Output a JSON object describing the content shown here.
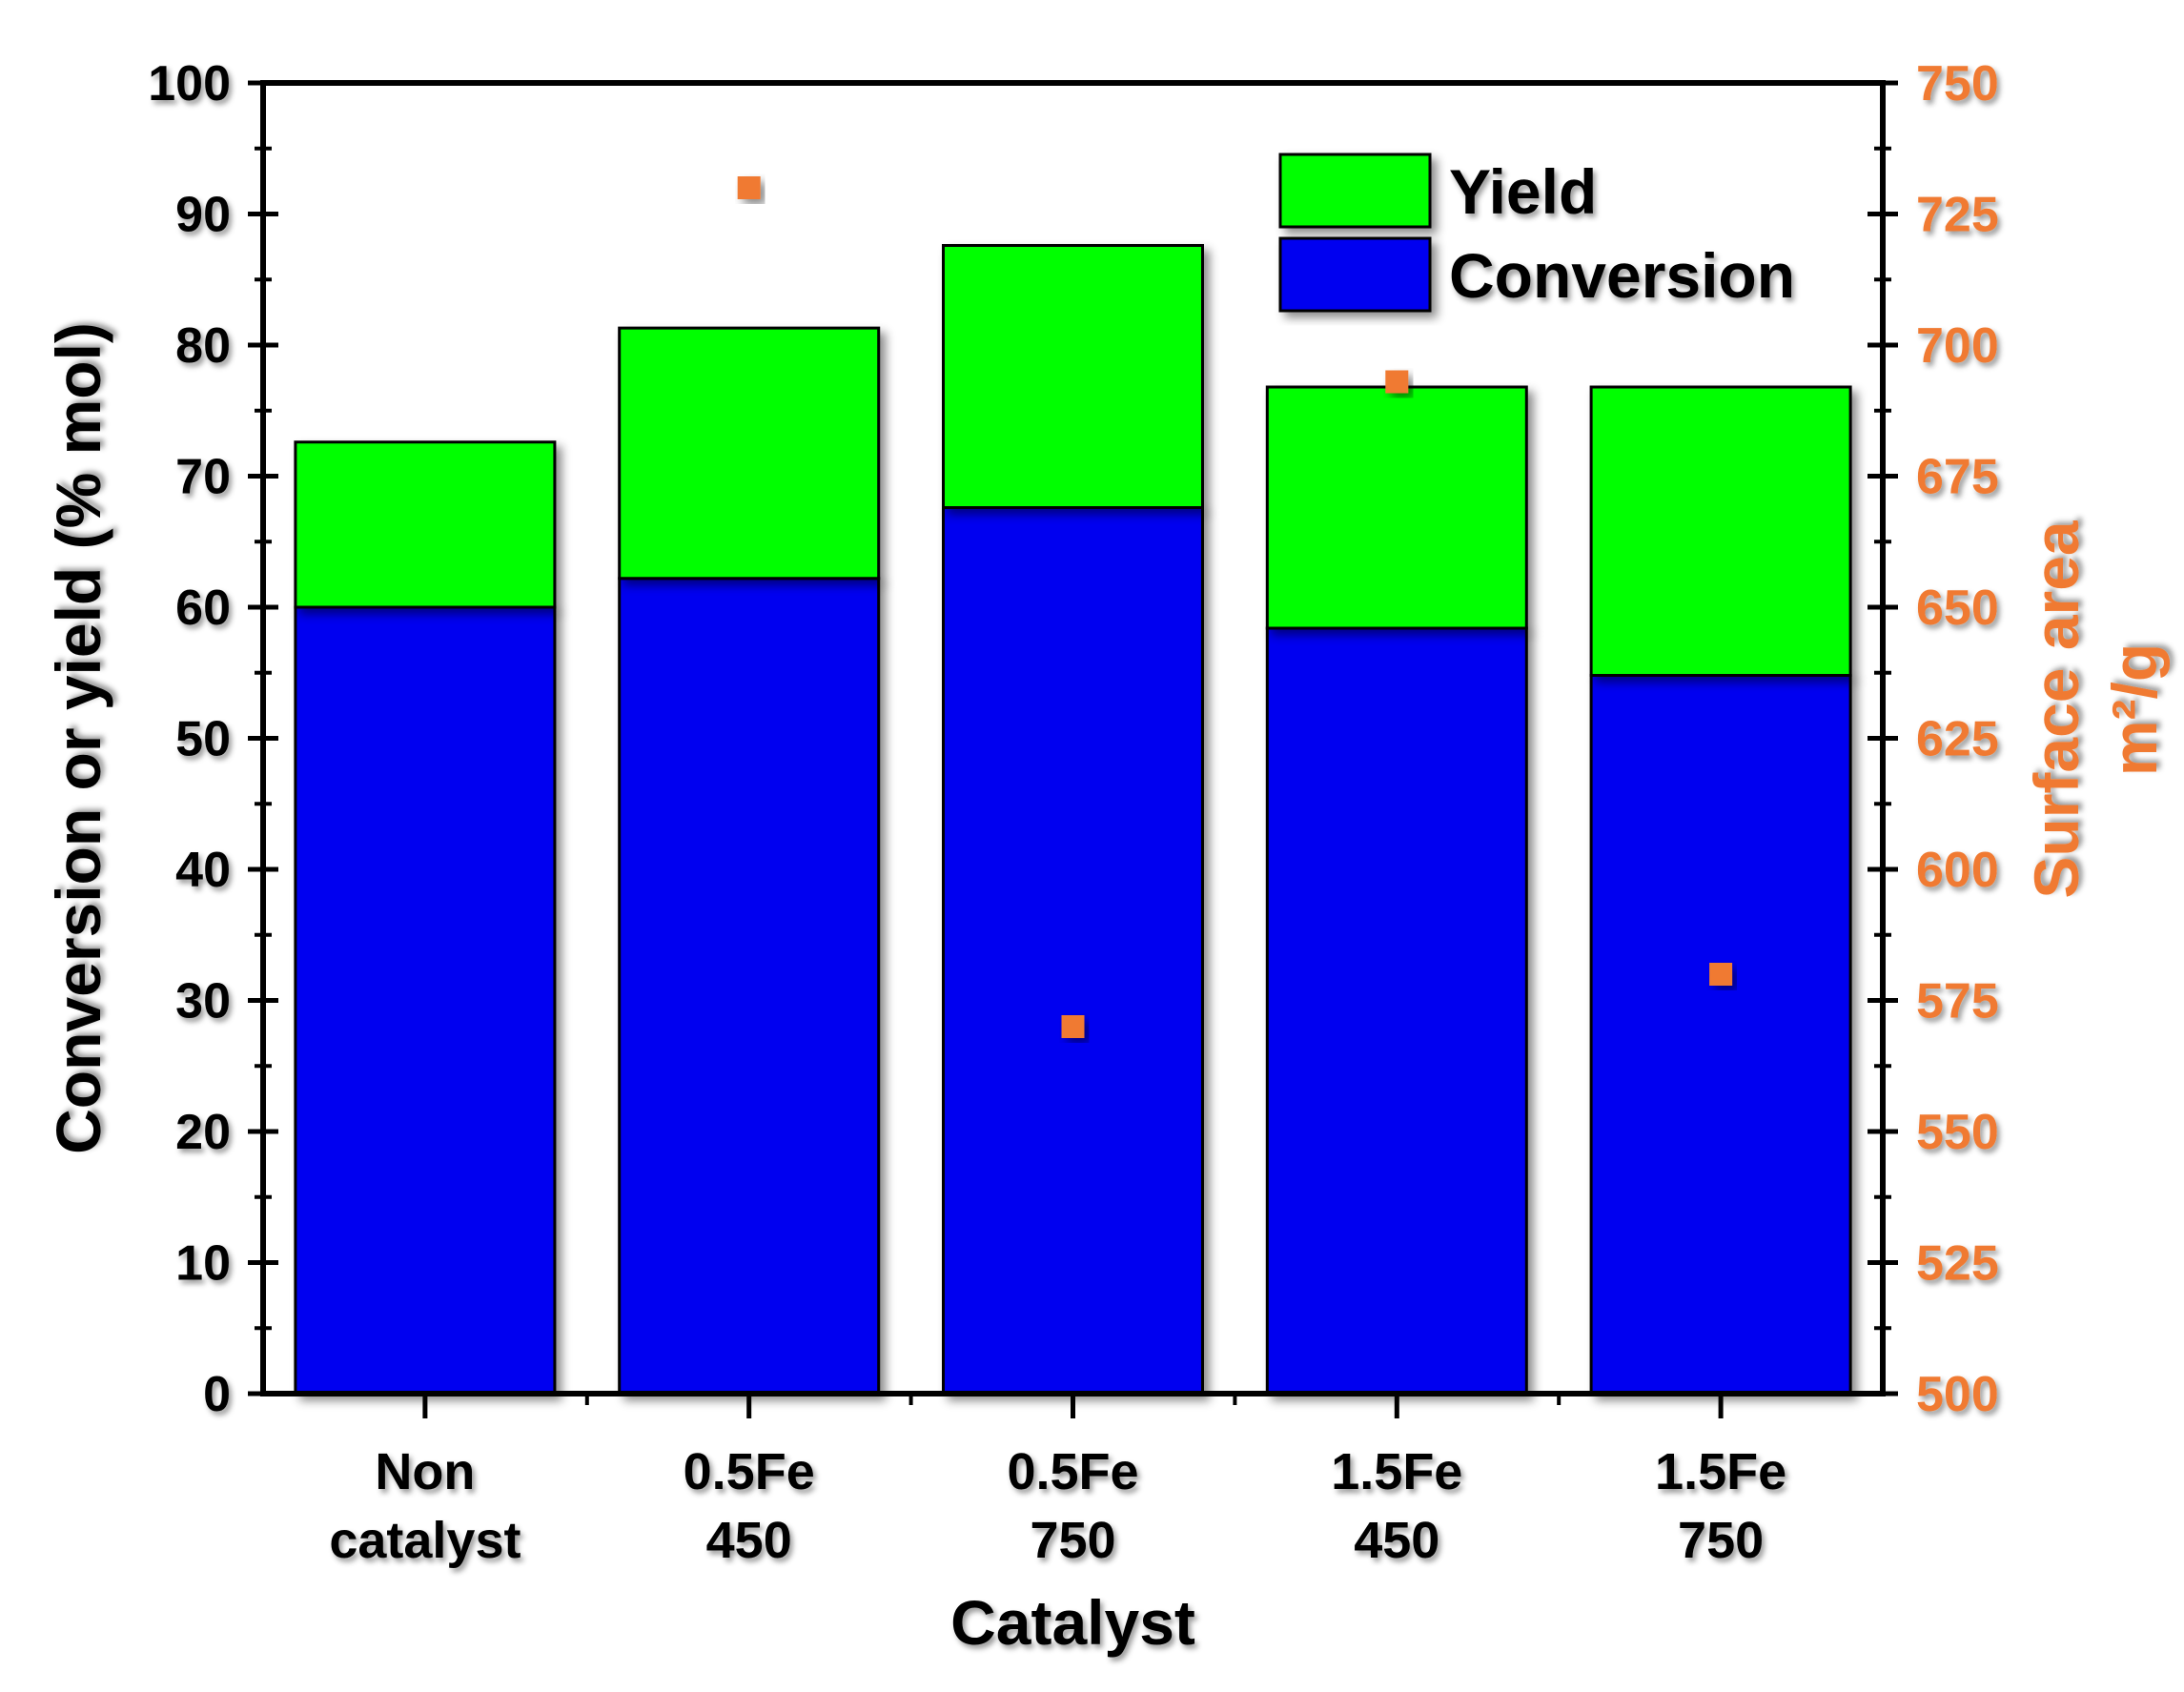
{
  "chart_data": {
    "type": "bar",
    "stacked": true,
    "categories": [
      [
        "Non",
        "catalyst"
      ],
      [
        "0.5Fe",
        "450"
      ],
      [
        "0.5Fe",
        "750"
      ],
      [
        "1.5Fe",
        "450"
      ],
      [
        "1.5Fe",
        "750"
      ]
    ],
    "series": [
      {
        "name": "Conversion",
        "values": [
          60,
          62.2,
          67.6,
          58.4,
          54.8
        ],
        "color": "#0000f0"
      },
      {
        "name": "Yield",
        "values": [
          12.6,
          19.1,
          20.0,
          18.4,
          22.0
        ],
        "color": "#00ff00"
      }
    ],
    "secondary_series": {
      "name": "Surface area",
      "axis": "right",
      "marker": "square",
      "color": "#f07a30",
      "values": [
        null,
        730,
        570,
        693,
        580
      ]
    },
    "xlabel": "Catalyst",
    "ylabel": "Conversion or yield (% mol)",
    "y2label": [
      "Surface area",
      "m²/g"
    ],
    "ylim": [
      0,
      100
    ],
    "y2lim": [
      500,
      750
    ],
    "yticks": [
      0,
      10,
      20,
      30,
      40,
      50,
      60,
      70,
      80,
      90,
      100
    ],
    "y2ticks": [
      500,
      525,
      550,
      575,
      600,
      625,
      650,
      675,
      700,
      725,
      750
    ],
    "legend": {
      "position": "top-right",
      "entries": [
        "Yield",
        "Conversion"
      ]
    },
    "colors": {
      "axis": "#000000",
      "secondary_axis": "#f07a30"
    }
  }
}
